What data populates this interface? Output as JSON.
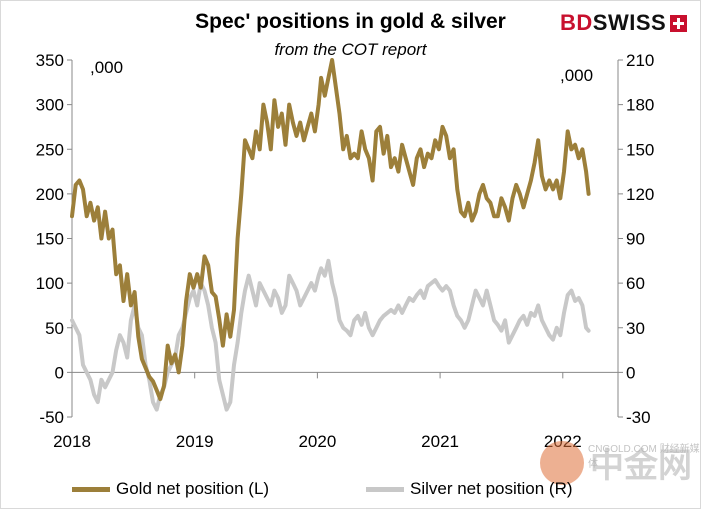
{
  "title": "Spec' positions in gold & silver",
  "subtitle": "from the COT report",
  "brand": {
    "part1": "BD",
    "part2": "SWISS"
  },
  "units": {
    "left": ",000",
    "right": ",000"
  },
  "watermark": {
    "text": "中金网",
    "url": "CNGOLD.COM",
    "tagline": "财经新媒体"
  },
  "colors": {
    "gold": "#9c7f3a",
    "silver": "#c8c8c8",
    "axis": "#888888"
  },
  "chart_data": {
    "type": "line",
    "x_ticks": [
      "2018",
      "2019",
      "2020",
      "2021",
      "2022"
    ],
    "x_range": [
      2018.0,
      2022.45
    ],
    "left_axis": {
      "ylim": [
        -50,
        350
      ],
      "ticks": [
        -50,
        0,
        50,
        100,
        150,
        200,
        250,
        300,
        350
      ]
    },
    "right_axis": {
      "ylim": [
        -30,
        210
      ],
      "ticks": [
        -30,
        0,
        30,
        60,
        90,
        120,
        150,
        180,
        210
      ]
    },
    "series": [
      {
        "name": "Gold net position (L)",
        "axis": "left",
        "color": "#9c7f3a",
        "points": [
          [
            2018.0,
            175
          ],
          [
            2018.03,
            210
          ],
          [
            2018.06,
            215
          ],
          [
            2018.09,
            205
          ],
          [
            2018.12,
            175
          ],
          [
            2018.15,
            190
          ],
          [
            2018.18,
            170
          ],
          [
            2018.21,
            185
          ],
          [
            2018.24,
            150
          ],
          [
            2018.27,
            180
          ],
          [
            2018.3,
            150
          ],
          [
            2018.33,
            160
          ],
          [
            2018.36,
            110
          ],
          [
            2018.39,
            120
          ],
          [
            2018.42,
            80
          ],
          [
            2018.45,
            110
          ],
          [
            2018.48,
            75
          ],
          [
            2018.51,
            90
          ],
          [
            2018.54,
            40
          ],
          [
            2018.57,
            15
          ],
          [
            2018.6,
            5
          ],
          [
            2018.63,
            -5
          ],
          [
            2018.66,
            -10
          ],
          [
            2018.69,
            -20
          ],
          [
            2018.72,
            -30
          ],
          [
            2018.75,
            -15
          ],
          [
            2018.78,
            30
          ],
          [
            2018.81,
            10
          ],
          [
            2018.84,
            20
          ],
          [
            2018.87,
            0
          ],
          [
            2018.9,
            30
          ],
          [
            2018.93,
            80
          ],
          [
            2018.96,
            110
          ],
          [
            2018.99,
            95
          ],
          [
            2019.02,
            110
          ],
          [
            2019.05,
            95
          ],
          [
            2019.08,
            130
          ],
          [
            2019.11,
            120
          ],
          [
            2019.14,
            90
          ],
          [
            2019.17,
            85
          ],
          [
            2019.2,
            60
          ],
          [
            2019.23,
            30
          ],
          [
            2019.26,
            65
          ],
          [
            2019.29,
            40
          ],
          [
            2019.32,
            70
          ],
          [
            2019.35,
            150
          ],
          [
            2019.38,
            200
          ],
          [
            2019.41,
            260
          ],
          [
            2019.44,
            250
          ],
          [
            2019.47,
            240
          ],
          [
            2019.5,
            270
          ],
          [
            2019.53,
            250
          ],
          [
            2019.56,
            300
          ],
          [
            2019.59,
            280
          ],
          [
            2019.62,
            250
          ],
          [
            2019.65,
            305
          ],
          [
            2019.68,
            275
          ],
          [
            2019.71,
            290
          ],
          [
            2019.74,
            255
          ],
          [
            2019.77,
            300
          ],
          [
            2019.8,
            280
          ],
          [
            2019.83,
            265
          ],
          [
            2019.86,
            280
          ],
          [
            2019.89,
            260
          ],
          [
            2019.92,
            275
          ],
          [
            2019.95,
            290
          ],
          [
            2019.98,
            270
          ],
          [
            2020.01,
            300
          ],
          [
            2020.03,
            330
          ],
          [
            2020.06,
            310
          ],
          [
            2020.09,
            330
          ],
          [
            2020.12,
            350
          ],
          [
            2020.15,
            320
          ],
          [
            2020.18,
            290
          ],
          [
            2020.21,
            250
          ],
          [
            2020.24,
            265
          ],
          [
            2020.27,
            240
          ],
          [
            2020.3,
            245
          ],
          [
            2020.33,
            240
          ],
          [
            2020.36,
            270
          ],
          [
            2020.39,
            250
          ],
          [
            2020.42,
            240
          ],
          [
            2020.45,
            215
          ],
          [
            2020.48,
            270
          ],
          [
            2020.51,
            275
          ],
          [
            2020.54,
            245
          ],
          [
            2020.57,
            265
          ],
          [
            2020.6,
            230
          ],
          [
            2020.63,
            240
          ],
          [
            2020.66,
            225
          ],
          [
            2020.69,
            255
          ],
          [
            2020.72,
            240
          ],
          [
            2020.75,
            225
          ],
          [
            2020.78,
            210
          ],
          [
            2020.81,
            240
          ],
          [
            2020.84,
            250
          ],
          [
            2020.87,
            230
          ],
          [
            2020.9,
            245
          ],
          [
            2020.93,
            240
          ],
          [
            2020.96,
            260
          ],
          [
            2020.99,
            250
          ],
          [
            2021.02,
            275
          ],
          [
            2021.05,
            265
          ],
          [
            2021.08,
            240
          ],
          [
            2021.11,
            250
          ],
          [
            2021.14,
            205
          ],
          [
            2021.17,
            180
          ],
          [
            2021.2,
            175
          ],
          [
            2021.23,
            190
          ],
          [
            2021.26,
            170
          ],
          [
            2021.29,
            180
          ],
          [
            2021.32,
            200
          ],
          [
            2021.35,
            210
          ],
          [
            2021.38,
            195
          ],
          [
            2021.41,
            190
          ],
          [
            2021.44,
            175
          ],
          [
            2021.47,
            175
          ],
          [
            2021.5,
            195
          ],
          [
            2021.53,
            185
          ],
          [
            2021.56,
            170
          ],
          [
            2021.59,
            195
          ],
          [
            2021.62,
            210
          ],
          [
            2021.65,
            200
          ],
          [
            2021.68,
            185
          ],
          [
            2021.71,
            200
          ],
          [
            2021.74,
            215
          ],
          [
            2021.77,
            235
          ],
          [
            2021.8,
            260
          ],
          [
            2021.83,
            220
          ],
          [
            2021.86,
            205
          ],
          [
            2021.89,
            215
          ],
          [
            2021.92,
            205
          ],
          [
            2021.95,
            215
          ],
          [
            2021.98,
            195
          ],
          [
            2022.01,
            225
          ],
          [
            2022.04,
            270
          ],
          [
            2022.07,
            250
          ],
          [
            2022.1,
            255
          ],
          [
            2022.13,
            240
          ],
          [
            2022.16,
            250
          ],
          [
            2022.19,
            225
          ],
          [
            2022.21,
            200
          ]
        ]
      },
      {
        "name": "Silver net position (R)",
        "axis": "right",
        "color": "#c8c8c8",
        "points": [
          [
            2018.0,
            35
          ],
          [
            2018.03,
            30
          ],
          [
            2018.06,
            25
          ],
          [
            2018.09,
            5
          ],
          [
            2018.12,
            0
          ],
          [
            2018.15,
            -5
          ],
          [
            2018.18,
            -15
          ],
          [
            2018.21,
            -20
          ],
          [
            2018.24,
            -5
          ],
          [
            2018.27,
            -10
          ],
          [
            2018.3,
            -5
          ],
          [
            2018.33,
            0
          ],
          [
            2018.36,
            15
          ],
          [
            2018.39,
            25
          ],
          [
            2018.42,
            20
          ],
          [
            2018.45,
            10
          ],
          [
            2018.48,
            35
          ],
          [
            2018.51,
            45
          ],
          [
            2018.54,
            30
          ],
          [
            2018.57,
            25
          ],
          [
            2018.6,
            5
          ],
          [
            2018.63,
            -5
          ],
          [
            2018.66,
            -20
          ],
          [
            2018.69,
            -25
          ],
          [
            2018.72,
            -15
          ],
          [
            2018.75,
            -10
          ],
          [
            2018.78,
            0
          ],
          [
            2018.81,
            5
          ],
          [
            2018.84,
            10
          ],
          [
            2018.87,
            25
          ],
          [
            2018.9,
            30
          ],
          [
            2018.93,
            40
          ],
          [
            2018.96,
            50
          ],
          [
            2018.99,
            55
          ],
          [
            2019.02,
            45
          ],
          [
            2019.05,
            60
          ],
          [
            2019.08,
            55
          ],
          [
            2019.11,
            45
          ],
          [
            2019.14,
            30
          ],
          [
            2019.17,
            20
          ],
          [
            2019.2,
            -5
          ],
          [
            2019.23,
            -15
          ],
          [
            2019.26,
            -25
          ],
          [
            2019.29,
            -20
          ],
          [
            2019.32,
            5
          ],
          [
            2019.35,
            20
          ],
          [
            2019.38,
            40
          ],
          [
            2019.41,
            55
          ],
          [
            2019.44,
            65
          ],
          [
            2019.47,
            55
          ],
          [
            2019.5,
            45
          ],
          [
            2019.53,
            60
          ],
          [
            2019.56,
            55
          ],
          [
            2019.59,
            50
          ],
          [
            2019.62,
            45
          ],
          [
            2019.65,
            55
          ],
          [
            2019.68,
            50
          ],
          [
            2019.71,
            40
          ],
          [
            2019.74,
            45
          ],
          [
            2019.77,
            65
          ],
          [
            2019.8,
            60
          ],
          [
            2019.83,
            55
          ],
          [
            2019.86,
            45
          ],
          [
            2019.89,
            50
          ],
          [
            2019.92,
            55
          ],
          [
            2019.95,
            60
          ],
          [
            2019.98,
            55
          ],
          [
            2020.01,
            65
          ],
          [
            2020.03,
            70
          ],
          [
            2020.06,
            65
          ],
          [
            2020.09,
            75
          ],
          [
            2020.12,
            60
          ],
          [
            2020.15,
            50
          ],
          [
            2020.18,
            35
          ],
          [
            2020.21,
            30
          ],
          [
            2020.24,
            28
          ],
          [
            2020.27,
            25
          ],
          [
            2020.3,
            35
          ],
          [
            2020.33,
            38
          ],
          [
            2020.36,
            32
          ],
          [
            2020.39,
            40
          ],
          [
            2020.42,
            30
          ],
          [
            2020.45,
            25
          ],
          [
            2020.48,
            30
          ],
          [
            2020.51,
            35
          ],
          [
            2020.54,
            38
          ],
          [
            2020.57,
            40
          ],
          [
            2020.6,
            42
          ],
          [
            2020.63,
            40
          ],
          [
            2020.66,
            45
          ],
          [
            2020.69,
            40
          ],
          [
            2020.72,
            45
          ],
          [
            2020.75,
            50
          ],
          [
            2020.78,
            48
          ],
          [
            2020.81,
            52
          ],
          [
            2020.84,
            55
          ],
          [
            2020.87,
            50
          ],
          [
            2020.9,
            58
          ],
          [
            2020.93,
            60
          ],
          [
            2020.96,
            62
          ],
          [
            2020.99,
            58
          ],
          [
            2021.02,
            55
          ],
          [
            2021.05,
            58
          ],
          [
            2021.08,
            55
          ],
          [
            2021.11,
            45
          ],
          [
            2021.14,
            38
          ],
          [
            2021.17,
            35
          ],
          [
            2021.2,
            30
          ],
          [
            2021.23,
            35
          ],
          [
            2021.26,
            45
          ],
          [
            2021.29,
            55
          ],
          [
            2021.32,
            50
          ],
          [
            2021.35,
            45
          ],
          [
            2021.38,
            55
          ],
          [
            2021.41,
            45
          ],
          [
            2021.44,
            35
          ],
          [
            2021.47,
            32
          ],
          [
            2021.5,
            28
          ],
          [
            2021.53,
            35
          ],
          [
            2021.56,
            20
          ],
          [
            2021.59,
            25
          ],
          [
            2021.62,
            30
          ],
          [
            2021.65,
            35
          ],
          [
            2021.68,
            38
          ],
          [
            2021.71,
            32
          ],
          [
            2021.74,
            40
          ],
          [
            2021.77,
            38
          ],
          [
            2021.8,
            45
          ],
          [
            2021.83,
            35
          ],
          [
            2021.86,
            30
          ],
          [
            2021.89,
            25
          ],
          [
            2021.92,
            22
          ],
          [
            2021.95,
            30
          ],
          [
            2021.98,
            25
          ],
          [
            2022.01,
            40
          ],
          [
            2022.04,
            52
          ],
          [
            2022.07,
            55
          ],
          [
            2022.1,
            48
          ],
          [
            2022.13,
            50
          ],
          [
            2022.16,
            45
          ],
          [
            2022.19,
            30
          ],
          [
            2022.21,
            28
          ]
        ]
      }
    ]
  }
}
